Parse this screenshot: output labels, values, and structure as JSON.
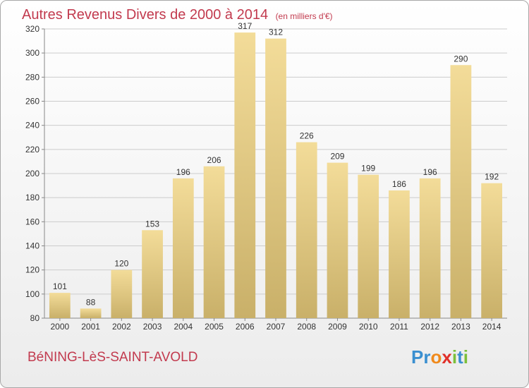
{
  "title": "Autres Revenus Divers de 2000 à 2014",
  "subtitle": "(en milliers d'€)",
  "commune": "BéNING-LèS-SAINT-AVOLD",
  "logo": {
    "letters": [
      "P",
      "r",
      "o",
      "x",
      "i",
      "t",
      "i"
    ],
    "colors": [
      "#3a8fd0",
      "#3a8fd0",
      "#f08a1c",
      "#e0302a",
      "#7cbf3a",
      "#3a8fd0",
      "#7cbf3a"
    ]
  },
  "colors": {
    "bar_light": "#f3dc99",
    "bar_dark": "#c9b069",
    "title": "#c23a4e",
    "grid": "#cccccc",
    "axis": "#888888"
  },
  "chart_data": {
    "type": "bar",
    "title": "Autres Revenus Divers de 2000 à 2014",
    "ylabel": "",
    "xlabel": "",
    "categories": [
      "2000",
      "2001",
      "2002",
      "2003",
      "2004",
      "2005",
      "2006",
      "2007",
      "2008",
      "2009",
      "2010",
      "2011",
      "2012",
      "2013",
      "2014"
    ],
    "values": [
      101,
      88,
      120,
      153,
      196,
      206,
      317,
      312,
      226,
      209,
      199,
      186,
      196,
      290,
      192
    ],
    "ylim": [
      80,
      320
    ],
    "yticks": [
      80,
      100,
      120,
      140,
      160,
      180,
      200,
      220,
      240,
      260,
      280,
      300,
      320
    ],
    "grid": true
  }
}
